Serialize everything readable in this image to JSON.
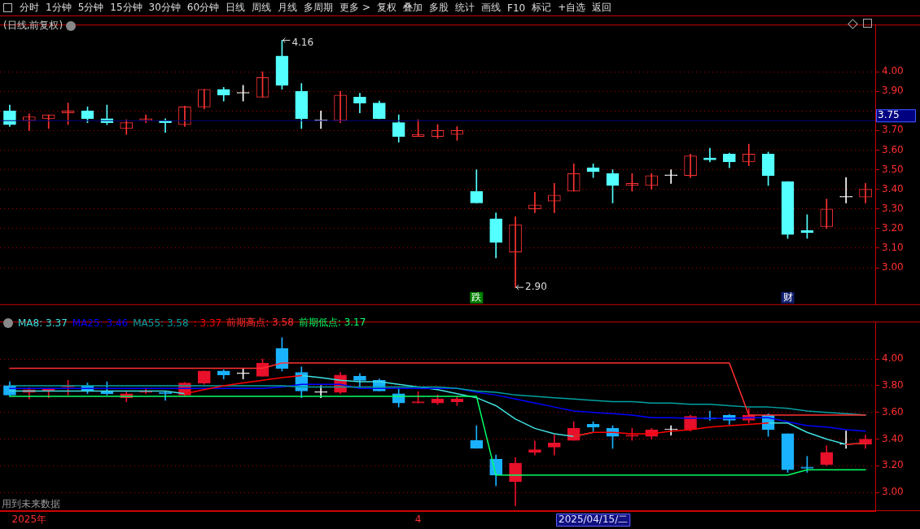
{
  "chart_data": [
    {
      "type": "other",
      "annotations": [
        "分时",
        "1分钟",
        "5分钟",
        "15分钟",
        "30分钟",
        "60分钟",
        "日线",
        "周线",
        "月线",
        "多周期",
        "更多 >",
        "复权",
        "叠加",
        "多股",
        "统计",
        "画线",
        "F10",
        "标记",
        "+自选",
        "返回"
      ]
    },
    {
      "type": "candlestick",
      "title": "(日线,前复权)",
      "categories": [
        null,
        null,
        null,
        null,
        null,
        null,
        null,
        null,
        null,
        null,
        null,
        null,
        null,
        null,
        null,
        null,
        null,
        null,
        null,
        null,
        null,
        null,
        null,
        null,
        "跌",
        null,
        null,
        null,
        null,
        null,
        null,
        null,
        null,
        null,
        null,
        null,
        null,
        null,
        null,
        null,
        "财",
        null,
        null,
        null,
        null
      ],
      "ohlc": [
        [
          3.8,
          3.83,
          3.72,
          3.73
        ],
        [
          3.75,
          3.785,
          3.7,
          3.77
        ],
        [
          3.76,
          3.78,
          3.71,
          3.78
        ],
        [
          3.79,
          3.84,
          3.73,
          3.8
        ],
        [
          3.8,
          3.82,
          3.74,
          3.76
        ],
        [
          3.76,
          3.83,
          3.73,
          3.74
        ],
        [
          3.71,
          3.755,
          3.68,
          3.74
        ],
        [
          3.75,
          3.78,
          3.74,
          3.76
        ],
        [
          3.75,
          3.76,
          3.69,
          3.74
        ],
        [
          3.73,
          3.825,
          3.72,
          3.82
        ],
        [
          3.82,
          3.91,
          3.81,
          3.91
        ],
        [
          3.91,
          3.92,
          3.85,
          3.88
        ],
        [
          3.89,
          3.93,
          3.85,
          3.89
        ],
        [
          3.87,
          4.0,
          3.87,
          3.97
        ],
        [
          4.08,
          4.16,
          3.91,
          3.93
        ],
        [
          3.9,
          3.94,
          3.71,
          3.76
        ],
        [
          3.75,
          3.8,
          3.71,
          3.75
        ],
        [
          3.75,
          3.9,
          3.74,
          3.88
        ],
        [
          3.87,
          3.89,
          3.79,
          3.84
        ],
        [
          3.84,
          3.85,
          3.76,
          3.76
        ],
        [
          3.74,
          3.78,
          3.64,
          3.67
        ],
        [
          3.67,
          3.755,
          3.67,
          3.68
        ],
        [
          3.67,
          3.73,
          3.66,
          3.7
        ],
        [
          3.68,
          3.72,
          3.65,
          3.7
        ],
        [
          3.39,
          3.5,
          3.33,
          3.33
        ],
        [
          3.25,
          3.28,
          3.05,
          3.13
        ],
        [
          3.08,
          3.26,
          2.9,
          3.22
        ],
        [
          3.3,
          3.385,
          3.28,
          3.32
        ],
        [
          3.34,
          3.43,
          3.28,
          3.37
        ],
        [
          3.39,
          3.53,
          3.39,
          3.48
        ],
        [
          3.51,
          3.53,
          3.46,
          3.49
        ],
        [
          3.48,
          3.5,
          3.33,
          3.42
        ],
        [
          3.42,
          3.48,
          3.39,
          3.43
        ],
        [
          3.42,
          3.48,
          3.4,
          3.47
        ],
        [
          3.47,
          3.5,
          3.43,
          3.47
        ],
        [
          3.47,
          3.58,
          3.46,
          3.57
        ],
        [
          3.56,
          3.61,
          3.54,
          3.55
        ],
        [
          3.58,
          3.585,
          3.51,
          3.54
        ],
        [
          3.54,
          3.63,
          3.52,
          3.58
        ],
        [
          3.58,
          3.59,
          3.42,
          3.47
        ],
        [
          3.44,
          3.44,
          3.15,
          3.17
        ],
        [
          3.19,
          3.27,
          3.15,
          3.18
        ],
        [
          3.21,
          3.35,
          3.2,
          3.3
        ],
        [
          3.36,
          3.46,
          3.33,
          3.36
        ],
        [
          3.36,
          3.43,
          3.33,
          3.4
        ]
      ],
      "ylim": [
        2.81,
        4.24
      ],
      "yticks": [
        {
          "value": 3.0,
          "label": "3.00"
        },
        {
          "value": 3.1,
          "label": "3.10"
        },
        {
          "value": 3.2,
          "label": "3.20"
        },
        {
          "value": 3.3,
          "label": "3.30"
        },
        {
          "value": 3.4,
          "label": "3.40"
        },
        {
          "value": 3.5,
          "label": "3.50"
        },
        {
          "value": 3.6,
          "label": "3.60"
        },
        {
          "value": 3.7,
          "label": "3.70"
        },
        {
          "value": 3.8,
          "label": null
        },
        {
          "value": 3.9,
          "label": "3.90"
        },
        {
          "value": 4.0,
          "label": "4.00"
        }
      ],
      "grid": true,
      "annotations": [
        "4.16",
        "2.90"
      ],
      "ref_lines": [
        {
          "axis": "y",
          "value": 3.75,
          "label": "3.75",
          "color": "#000080"
        }
      ]
    },
    {
      "type": "candlestick",
      "categories": [
        null,
        "2025年",
        null,
        null,
        null,
        null,
        null,
        null,
        null,
        null,
        null,
        null,
        null,
        null,
        null,
        null,
        null,
        null,
        null,
        null,
        null,
        "4",
        null,
        null,
        null,
        null,
        null,
        null,
        null,
        null,
        "2025/04/15/二",
        null,
        null,
        null,
        null,
        null,
        null,
        null,
        null,
        null,
        null,
        null,
        null,
        null,
        null
      ],
      "ohlc": [
        [
          3.8,
          3.83,
          3.72,
          3.73
        ],
        [
          3.75,
          3.785,
          3.7,
          3.77
        ],
        [
          3.76,
          3.78,
          3.71,
          3.78
        ],
        [
          3.79,
          3.84,
          3.73,
          3.8
        ],
        [
          3.8,
          3.82,
          3.74,
          3.76
        ],
        [
          3.76,
          3.83,
          3.73,
          3.74
        ],
        [
          3.71,
          3.755,
          3.68,
          3.74
        ],
        [
          3.75,
          3.78,
          3.74,
          3.76
        ],
        [
          3.75,
          3.76,
          3.69,
          3.74
        ],
        [
          3.73,
          3.825,
          3.72,
          3.82
        ],
        [
          3.82,
          3.91,
          3.81,
          3.91
        ],
        [
          3.91,
          3.92,
          3.85,
          3.88
        ],
        [
          3.89,
          3.93,
          3.85,
          3.89
        ],
        [
          3.87,
          4.0,
          3.87,
          3.97
        ],
        [
          4.08,
          4.16,
          3.91,
          3.93
        ],
        [
          3.9,
          3.94,
          3.71,
          3.76
        ],
        [
          3.75,
          3.8,
          3.71,
          3.75
        ],
        [
          3.75,
          3.9,
          3.74,
          3.88
        ],
        [
          3.87,
          3.89,
          3.79,
          3.84
        ],
        [
          3.84,
          3.85,
          3.76,
          3.76
        ],
        [
          3.74,
          3.78,
          3.64,
          3.67
        ],
        [
          3.67,
          3.755,
          3.67,
          3.68
        ],
        [
          3.67,
          3.73,
          3.66,
          3.7
        ],
        [
          3.68,
          3.72,
          3.65,
          3.7
        ],
        [
          3.39,
          3.5,
          3.33,
          3.33
        ],
        [
          3.25,
          3.28,
          3.05,
          3.13
        ],
        [
          3.08,
          3.26,
          2.9,
          3.22
        ],
        [
          3.3,
          3.385,
          3.28,
          3.32
        ],
        [
          3.34,
          3.43,
          3.28,
          3.37
        ],
        [
          3.39,
          3.53,
          3.39,
          3.48
        ],
        [
          3.51,
          3.53,
          3.46,
          3.49
        ],
        [
          3.48,
          3.5,
          3.33,
          3.42
        ],
        [
          3.42,
          3.48,
          3.39,
          3.43
        ],
        [
          3.42,
          3.48,
          3.4,
          3.47
        ],
        [
          3.47,
          3.5,
          3.43,
          3.47
        ],
        [
          3.47,
          3.58,
          3.46,
          3.57
        ],
        [
          3.56,
          3.61,
          3.54,
          3.55
        ],
        [
          3.58,
          3.585,
          3.51,
          3.54
        ],
        [
          3.54,
          3.63,
          3.52,
          3.58
        ],
        [
          3.58,
          3.59,
          3.42,
          3.47
        ],
        [
          3.44,
          3.44,
          3.15,
          3.17
        ],
        [
          3.19,
          3.27,
          3.15,
          3.18
        ],
        [
          3.21,
          3.35,
          3.2,
          3.3
        ],
        [
          3.36,
          3.46,
          3.33,
          3.36
        ],
        [
          3.36,
          3.43,
          3.33,
          3.4
        ]
      ],
      "series": [
        {
          "name": "MA8: 3.37",
          "type": "line",
          "color": "#40e0e0",
          "values": [
            3.76,
            3.76,
            3.76,
            3.76,
            3.76,
            3.76,
            3.76,
            3.76,
            3.76,
            3.74,
            null,
            null,
            null,
            null,
            null,
            3.875,
            3.86,
            3.84,
            3.83,
            3.83,
            3.81,
            3.79,
            3.77,
            3.74,
            3.71,
            3.65,
            3.55,
            3.48,
            3.44,
            3.42,
            3.45,
            null,
            null,
            null,
            null,
            null,
            null,
            null,
            null,
            3.52,
            3.52,
            3.45,
            3.4,
            3.36,
            3.37
          ]
        },
        {
          "name": "MA25: 3.46",
          "type": "line",
          "color": "#0000ff",
          "values": [
            3.78,
            3.78,
            3.78,
            3.78,
            3.78,
            3.78,
            3.78,
            3.78,
            3.78,
            3.78,
            3.78,
            3.78,
            3.78,
            3.78,
            3.79,
            3.81,
            3.81,
            3.81,
            3.78,
            3.78,
            3.78,
            3.78,
            3.78,
            3.78,
            3.75,
            3.73,
            3.7,
            3.67,
            3.64,
            3.61,
            3.6,
            3.59,
            3.58,
            3.56,
            3.56,
            3.555,
            3.555,
            3.555,
            3.56,
            3.56,
            3.53,
            3.5,
            3.49,
            3.47,
            3.46
          ]
        },
        {
          "name": "MA55: 3.58",
          "type": "line",
          "color": "#00a0a0",
          "values": [
            3.8,
            3.8,
            3.8,
            3.8,
            3.8,
            3.8,
            3.8,
            3.8,
            3.8,
            3.8,
            3.8,
            3.8,
            3.8,
            3.8,
            3.8,
            3.79,
            3.79,
            3.79,
            3.79,
            3.79,
            3.79,
            3.79,
            3.79,
            3.78,
            3.76,
            3.75,
            3.73,
            3.72,
            3.71,
            3.7,
            3.69,
            3.68,
            3.68,
            3.67,
            3.67,
            3.66,
            3.66,
            3.65,
            3.64,
            3.64,
            3.63,
            3.61,
            3.6,
            3.59,
            3.58
          ]
        },
        {
          "name": ": 3.37",
          "type": "line",
          "color": "#ff0000",
          "values": [
            null,
            null,
            null,
            null,
            null,
            null,
            null,
            null,
            null,
            3.74,
            3.77,
            3.8,
            3.82,
            3.84,
            3.86,
            3.875,
            null,
            null,
            null,
            null,
            null,
            null,
            null,
            null,
            null,
            null,
            null,
            null,
            null,
            3.42,
            3.45,
            3.45,
            3.44,
            3.44,
            3.46,
            3.47,
            3.49,
            3.5,
            3.51,
            3.52,
            null,
            null,
            null,
            3.36,
            3.37
          ]
        },
        {
          "name": "前期高点: 3.58",
          "type": "line",
          "color": "#ff3030",
          "values": [
            3.93,
            3.93,
            3.93,
            3.93,
            3.93,
            3.93,
            3.93,
            3.93,
            3.93,
            3.93,
            3.93,
            3.93,
            3.93,
            3.93,
            3.97,
            3.97,
            3.97,
            3.97,
            3.97,
            3.97,
            3.97,
            3.97,
            3.97,
            3.97,
            3.97,
            3.97,
            3.97,
            3.97,
            3.97,
            3.97,
            3.97,
            3.97,
            3.97,
            3.97,
            3.97,
            3.97,
            3.97,
            3.97,
            3.58,
            3.58,
            3.58,
            3.58,
            3.58,
            3.58,
            3.58
          ]
        },
        {
          "name": "前期低点: 3.17",
          "type": "line",
          "color": "#00ff66",
          "values": [
            3.72,
            3.72,
            3.72,
            3.72,
            3.72,
            3.72,
            3.72,
            3.72,
            3.72,
            3.72,
            3.72,
            3.72,
            3.72,
            3.72,
            3.72,
            3.72,
            3.72,
            3.72,
            3.72,
            3.72,
            3.72,
            3.72,
            3.72,
            3.72,
            3.72,
            3.13,
            3.13,
            3.13,
            3.13,
            3.13,
            3.13,
            3.13,
            3.13,
            3.13,
            3.13,
            3.13,
            3.13,
            3.13,
            3.13,
            3.13,
            3.13,
            3.17,
            3.17,
            3.17,
            3.17
          ]
        }
      ],
      "ylim": [
        2.86,
        4.28
      ],
      "yticks": [
        {
          "value": 3.0,
          "label": "3.00"
        },
        {
          "value": 3.2,
          "label": "3.20"
        },
        {
          "value": 3.4,
          "label": "3.40"
        },
        {
          "value": 3.6,
          "label": "3.60"
        },
        {
          "value": 3.8,
          "label": "3.80"
        },
        {
          "value": 4.0,
          "label": "4.00"
        }
      ],
      "grid": true,
      "annotations": [
        "用到未来数据"
      ]
    }
  ]
}
